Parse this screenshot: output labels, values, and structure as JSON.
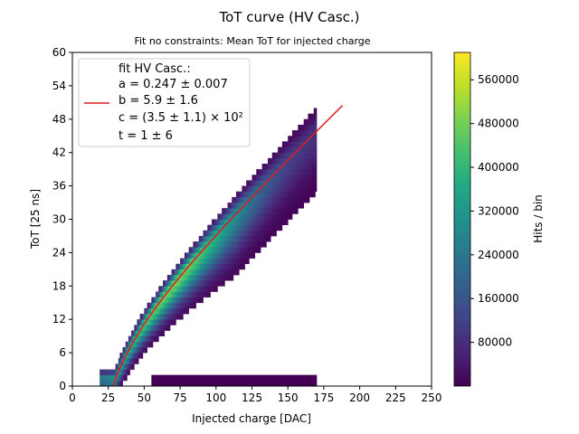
{
  "chart_data": {
    "type": "heatmap",
    "title": "ToT curve (HV Casc.)",
    "subtitle": "Fit no constraints: Mean ToT for injected charge",
    "xlabel": "Injected charge [DAC]",
    "ylabel": "ToT [25 ns]",
    "xlim": [
      0,
      250
    ],
    "ylim": [
      0,
      60
    ],
    "xticks": [
      0,
      25,
      50,
      75,
      100,
      125,
      150,
      175,
      200,
      225,
      250
    ],
    "yticks": [
      0,
      6,
      12,
      18,
      24,
      30,
      36,
      42,
      48,
      54,
      60
    ],
    "grid": false,
    "legend": {
      "placement": "top-left",
      "title": "fit HV Casc.:",
      "lines": [
        "a = 0.247 ± 0.007",
        "b = 5.9 ± 1.6",
        "c = (3.5 ± 1.1) × 10²",
        "t = 1 ± 6"
      ]
    },
    "colorbar": {
      "label": "Hits / bin",
      "range": [
        0,
        610000
      ],
      "ticks": [
        80000,
        160000,
        240000,
        320000,
        400000,
        480000,
        560000
      ],
      "tick_labels": [
        "80000",
        "160000",
        "240000",
        "320000",
        "400000",
        "480000",
        "560000"
      ],
      "colormap": "viridis"
    },
    "heatmap": {
      "x_range": [
        19,
        169
      ],
      "band_low_tot": [
        0,
        2
      ],
      "band_low_x_start": 55
    },
    "fit": {
      "name": "fit HV Casc.",
      "color": "#e31a1c",
      "x_range": [
        19,
        188
      ],
      "params": {
        "a": 0.247,
        "b": 5.9,
        "c": 350,
        "t": 1
      }
    }
  }
}
